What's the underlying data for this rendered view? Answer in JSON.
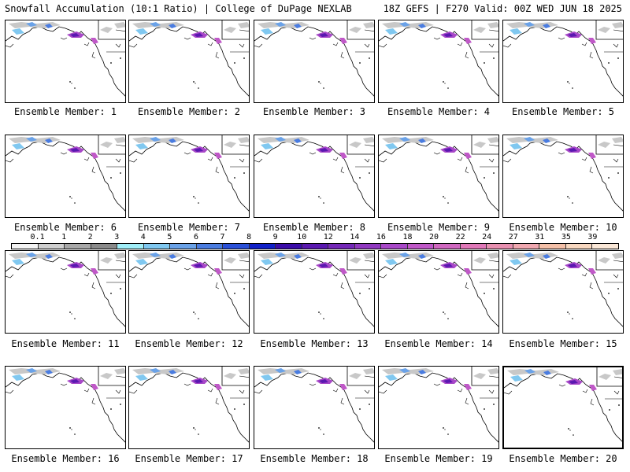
{
  "header": {
    "title_left": "Snowfall Accumulation (10:1 Ratio) | College of DuPage NEXLAB",
    "title_right": "18Z GEFS | F270 Valid: 00Z WED JUN 18 2025"
  },
  "members": [
    {
      "label": "Ensemble Member: 1"
    },
    {
      "label": "Ensemble Member: 2"
    },
    {
      "label": "Ensemble Member: 3"
    },
    {
      "label": "Ensemble Member: 4"
    },
    {
      "label": "Ensemble Member: 5"
    },
    {
      "label": "Ensemble Member: 6"
    },
    {
      "label": "Ensemble Member: 7"
    },
    {
      "label": "Ensemble Member: 8"
    },
    {
      "label": "Ensemble Member: 9"
    },
    {
      "label": "Ensemble Member: 10"
    },
    {
      "label": "Ensemble Member: 11"
    },
    {
      "label": "Ensemble Member: 12"
    },
    {
      "label": "Ensemble Member: 13"
    },
    {
      "label": "Ensemble Member: 14"
    },
    {
      "label": "Ensemble Member: 15"
    },
    {
      "label": "Ensemble Member: 16"
    },
    {
      "label": "Ensemble Member: 17"
    },
    {
      "label": "Ensemble Member: 18"
    },
    {
      "label": "Ensemble Member: 19"
    },
    {
      "label": "Ensemble Member: 20"
    }
  ],
  "colorbar": {
    "ticks": [
      "0.1",
      "1",
      "2",
      "3",
      "4",
      "5",
      "6",
      "7",
      "8",
      "9",
      "10",
      "12",
      "14",
      "16",
      "18",
      "20",
      "22",
      "24",
      "27",
      "31",
      "35",
      "39"
    ],
    "colors": [
      "#f4f4f4",
      "#d0d0d0",
      "#a8a8a8",
      "#8a8a8a",
      "#a0eef8",
      "#80c8f0",
      "#6aa2e8",
      "#4a7ce0",
      "#2a50d8",
      "#1020c8",
      "#3a0ca8",
      "#5a18b0",
      "#7428b8",
      "#9038c0",
      "#a848c8",
      "#c058c8",
      "#d068c0",
      "#e078b8",
      "#e890b0",
      "#f0a8b0",
      "#f4c0a8",
      "#f8d8c0",
      "#fbe8d8"
    ],
    "selected_index": 10
  }
}
